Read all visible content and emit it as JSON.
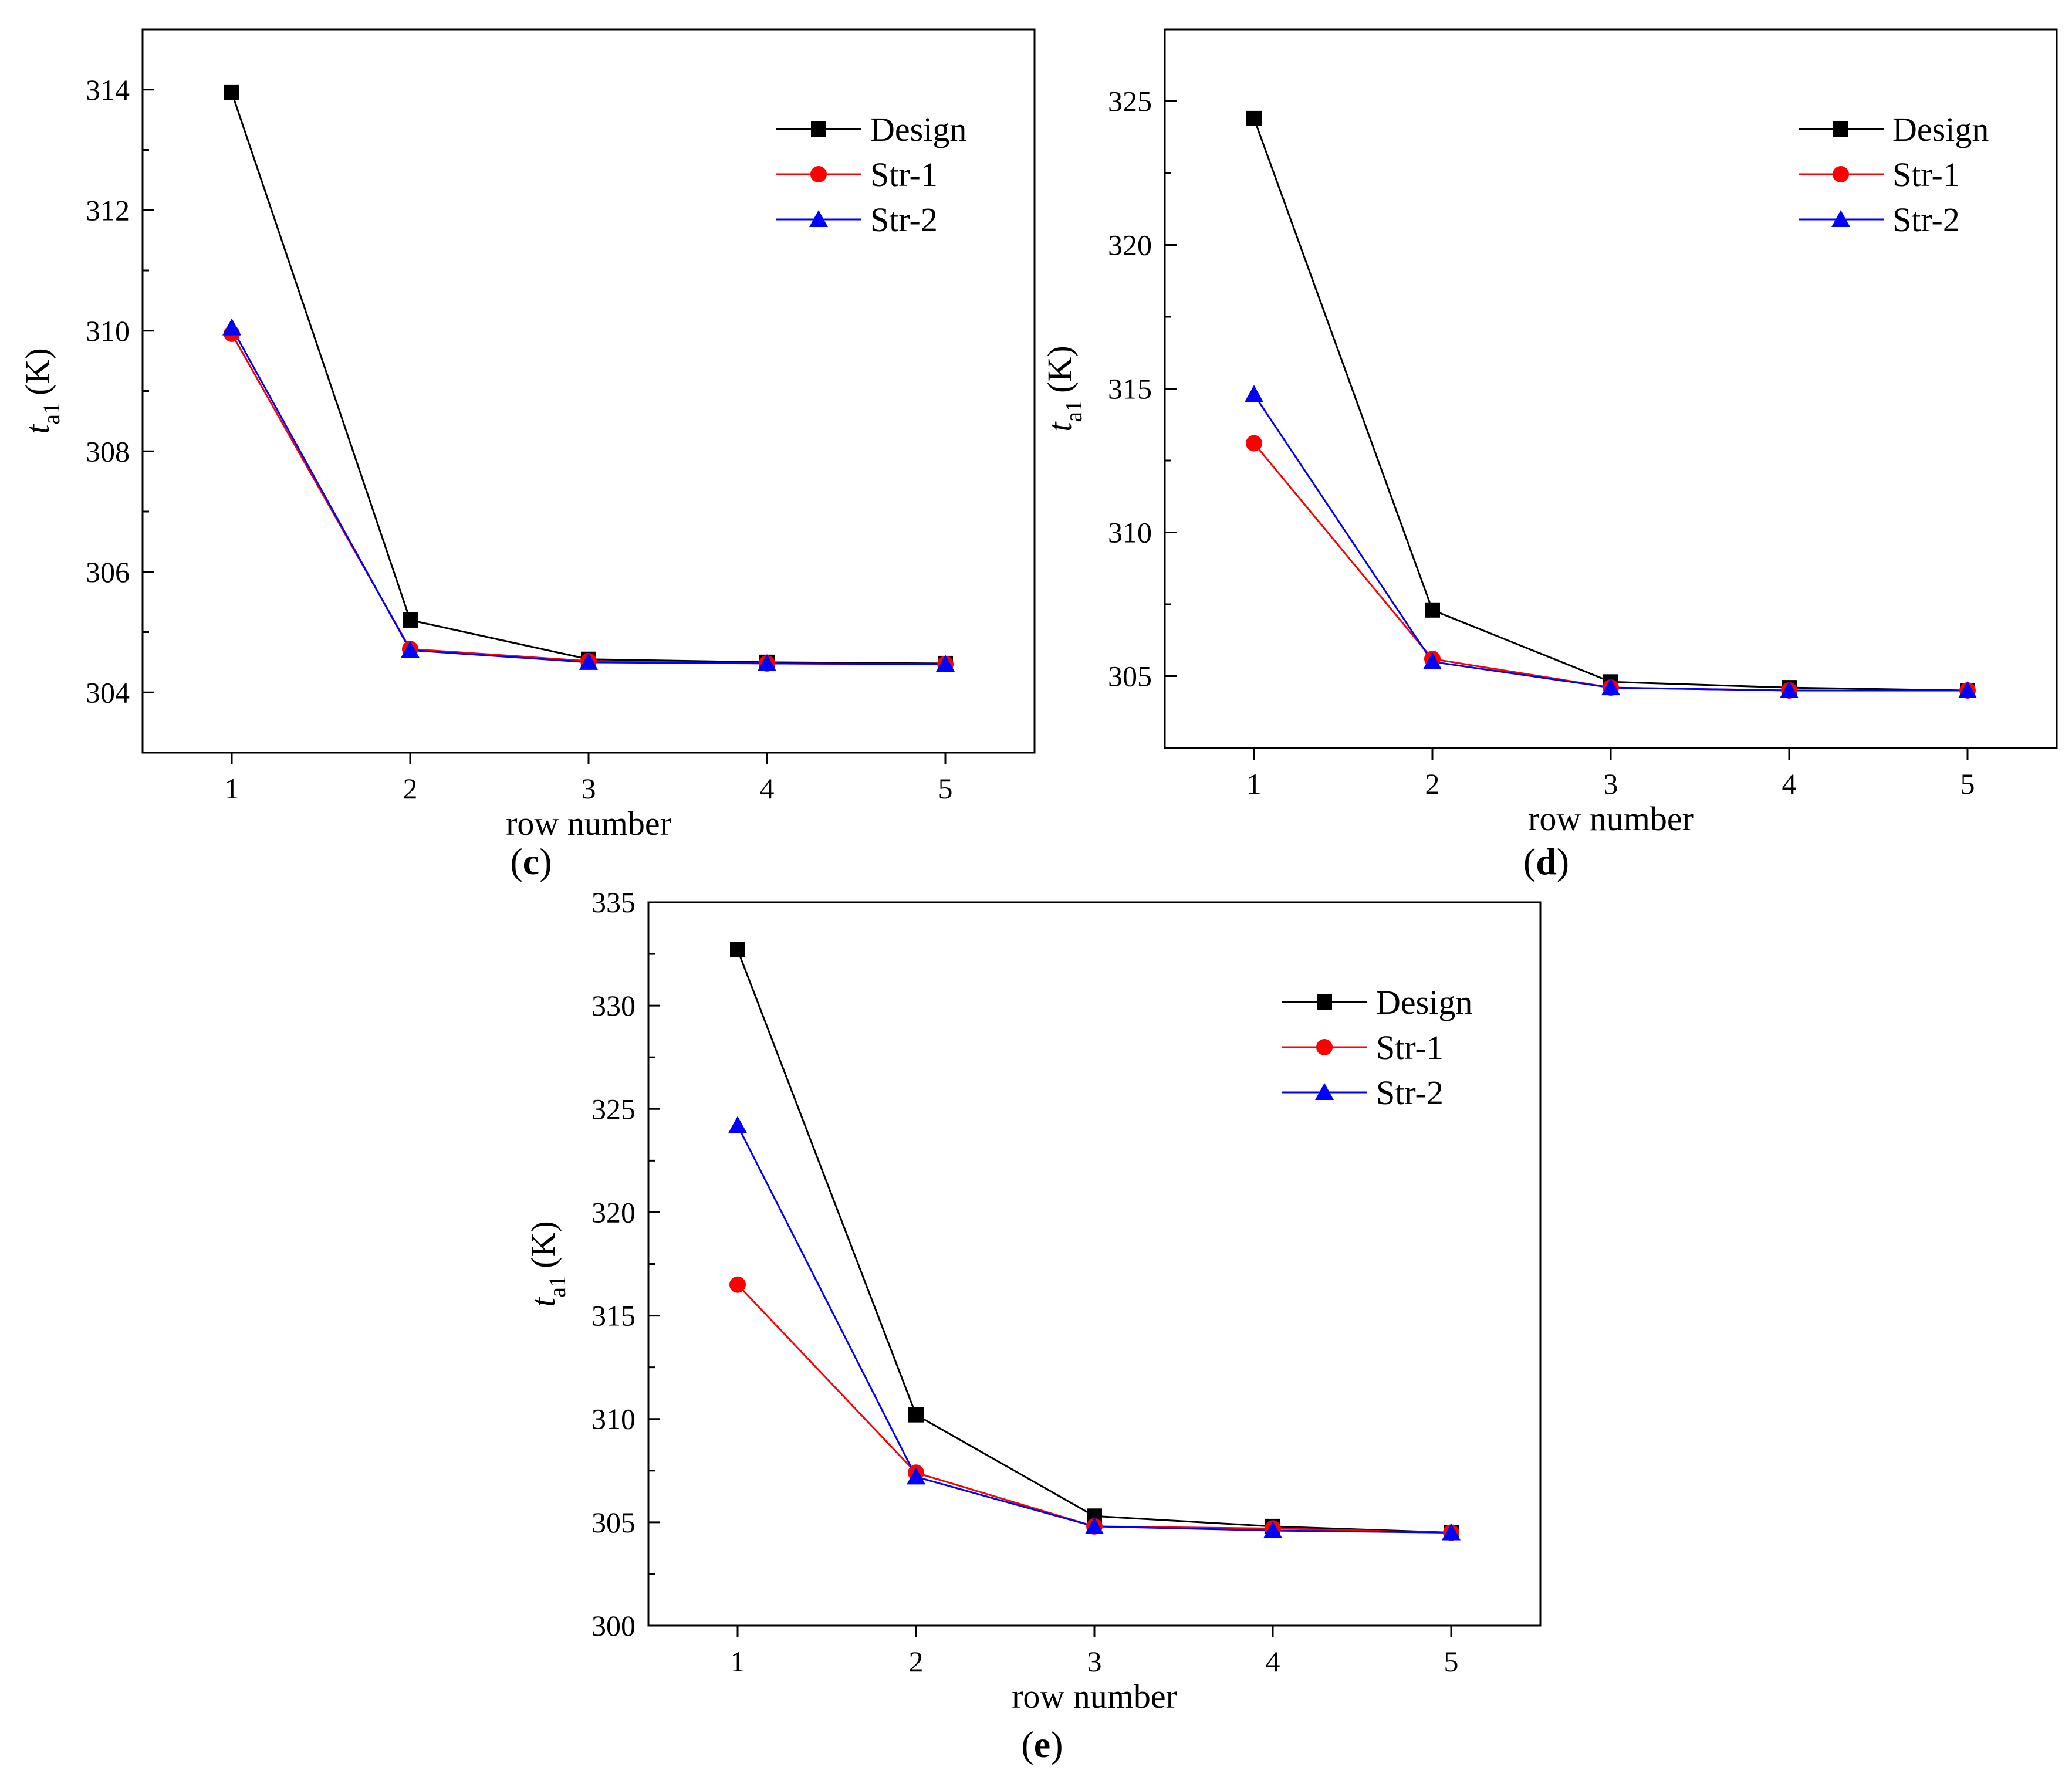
{
  "colors": {
    "Design": "#000000",
    "Str-1": "#ff0000",
    "Str-2": "#0000ff",
    "axis": "#000000",
    "background": "#ffffff"
  },
  "chart_data": [
    {
      "id": "c",
      "type": "line",
      "panel_label": "c",
      "xlabel": "row number",
      "ylabel": {
        "var": "t",
        "sub": "a1",
        "unit": "(K)"
      },
      "xlim": [
        0.5,
        5.5
      ],
      "ylim": [
        303,
        315
      ],
      "xticks": [
        1,
        2,
        3,
        4,
        5
      ],
      "yticks": [
        304,
        306,
        308,
        310,
        312,
        314
      ],
      "categories": [
        1,
        2,
        3,
        4,
        5
      ],
      "legend_position": "top-right",
      "series": [
        {
          "name": "Design",
          "marker": "square",
          "values": [
            313.95,
            305.2,
            304.55,
            304.5,
            304.48
          ]
        },
        {
          "name": "Str-1",
          "marker": "circle",
          "values": [
            309.95,
            304.72,
            304.52,
            304.48,
            304.47
          ]
        },
        {
          "name": "Str-2",
          "marker": "triangle",
          "values": [
            310.05,
            304.7,
            304.5,
            304.48,
            304.47
          ]
        }
      ]
    },
    {
      "id": "d",
      "type": "line",
      "panel_label": "d",
      "xlabel": "row number",
      "ylabel": {
        "var": "t",
        "sub": "a1",
        "unit": "(K)"
      },
      "xlim": [
        0.5,
        5.5
      ],
      "ylim": [
        302.5,
        327.5
      ],
      "xticks": [
        1,
        2,
        3,
        4,
        5
      ],
      "yticks": [
        305,
        310,
        315,
        320,
        325
      ],
      "categories": [
        1,
        2,
        3,
        4,
        5
      ],
      "legend_position": "top-right",
      "series": [
        {
          "name": "Design",
          "marker": "square",
          "values": [
            324.4,
            307.3,
            304.8,
            304.6,
            304.5
          ]
        },
        {
          "name": "Str-1",
          "marker": "circle",
          "values": [
            313.1,
            305.6,
            304.6,
            304.5,
            304.5
          ]
        },
        {
          "name": "Str-2",
          "marker": "triangle",
          "values": [
            314.8,
            305.5,
            304.6,
            304.5,
            304.5
          ]
        }
      ]
    },
    {
      "id": "e",
      "type": "line",
      "panel_label": "e",
      "xlabel": "row number",
      "ylabel": {
        "var": "t",
        "sub": "a1",
        "unit": "(K)"
      },
      "xlim": [
        0.5,
        5.5
      ],
      "ylim": [
        300,
        335
      ],
      "xticks": [
        1,
        2,
        3,
        4,
        5
      ],
      "yticks": [
        300,
        305,
        310,
        315,
        320,
        325,
        330,
        335
      ],
      "categories": [
        1,
        2,
        3,
        4,
        5
      ],
      "legend_position": "top-right",
      "series": [
        {
          "name": "Design",
          "marker": "square",
          "values": [
            332.7,
            310.2,
            305.3,
            304.8,
            304.5
          ]
        },
        {
          "name": "Str-1",
          "marker": "circle",
          "values": [
            316.5,
            307.4,
            304.8,
            304.7,
            304.5
          ]
        },
        {
          "name": "Str-2",
          "marker": "triangle",
          "values": [
            324.2,
            307.2,
            304.8,
            304.6,
            304.5
          ]
        }
      ]
    }
  ]
}
